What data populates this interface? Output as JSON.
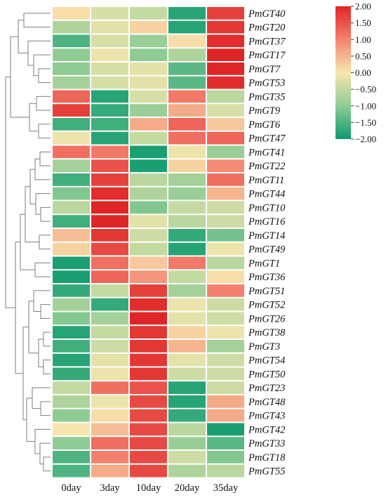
{
  "chart_data": {
    "type": "heatmap",
    "title": "",
    "xlabel": "",
    "ylabel": "",
    "columns": [
      "0day",
      "3day",
      "10day",
      "20day",
      "35day"
    ],
    "rows": [
      "PmGT40",
      "PmGT20",
      "PmGT37",
      "PmGT17",
      "PmGT7",
      "PmGT53",
      "PmGT35",
      "PmGT9",
      "PmGT6",
      "PmGT47",
      "PmGT41",
      "PmGT22",
      "PmGT11",
      "PmGT44",
      "PmGT10",
      "PmGT16",
      "PmGT14",
      "PmGT49",
      "PmGT1",
      "PmGT36",
      "PmGT51",
      "PmGT52",
      "PmGT26",
      "PmGT38",
      "PmGT3",
      "PmGT54",
      "PmGT50",
      "PmGT23",
      "PmGT48",
      "PmGT43",
      "PmGT42",
      "PmGT33",
      "PmGT18",
      "PmGT55"
    ],
    "values": [
      [
        0.1,
        -0.3,
        -0.5,
        -1.8,
        1.7
      ],
      [
        -0.7,
        -0.2,
        0.2,
        -1.8,
        1.8
      ],
      [
        -1.5,
        -0.3,
        -0.9,
        0.1,
        1.9
      ],
      [
        -1.0,
        -0.1,
        -1.0,
        -0.7,
        2.0
      ],
      [
        -1.0,
        -0.3,
        -0.2,
        -1.4,
        2.0
      ],
      [
        -0.8,
        -0.3,
        -0.2,
        -1.4,
        1.9
      ],
      [
        1.3,
        -1.8,
        -0.3,
        1.1,
        -0.6
      ],
      [
        1.7,
        -1.7,
        -0.9,
        0.6,
        -0.3
      ],
      [
        -1.6,
        -1.6,
        0.6,
        1.3,
        0.3
      ],
      [
        -0.1,
        -1.8,
        -0.5,
        1.2,
        1.3
      ],
      [
        1.2,
        1.1,
        -1.9,
        -0.1,
        -0.9
      ],
      [
        -0.8,
        1.5,
        -1.9,
        0.2,
        0.9
      ],
      [
        -1.6,
        1.7,
        -0.6,
        -0.8,
        1.2
      ],
      [
        -1.1,
        1.9,
        -0.7,
        -0.9,
        0.5
      ],
      [
        -0.6,
        2.0,
        -1.1,
        -0.5,
        -0.4
      ],
      [
        -1.6,
        2.0,
        -0.2,
        -0.6,
        -0.4
      ],
      [
        0.4,
        1.8,
        -0.4,
        -1.7,
        -1.2
      ],
      [
        0.2,
        1.6,
        -0.5,
        -1.8,
        -0.1
      ],
      [
        -1.9,
        1.2,
        0.3,
        1.1,
        -0.6
      ],
      [
        -1.9,
        1.3,
        0.8,
        -0.5,
        0.1
      ],
      [
        -1.7,
        -0.5,
        1.7,
        -0.8,
        1.0
      ],
      [
        -0.8,
        -1.7,
        1.9,
        -0.1,
        -0.4
      ],
      [
        -1.1,
        -0.8,
        2.0,
        -0.2,
        -0.4
      ],
      [
        -1.8,
        -0.5,
        1.8,
        0.2,
        -0.1
      ],
      [
        -1.6,
        -0.4,
        1.8,
        0.5,
        -0.8
      ],
      [
        -1.8,
        -0.2,
        1.8,
        -0.2,
        -0.4
      ],
      [
        -1.7,
        -0.1,
        1.8,
        -0.4,
        -0.4
      ],
      [
        -0.5,
        1.2,
        1.5,
        -1.8,
        -0.4
      ],
      [
        -0.7,
        -0.1,
        1.6,
        -1.8,
        0.6
      ],
      [
        -1.0,
        0.1,
        1.6,
        -1.7,
        0.6
      ],
      [
        0.0,
        0.4,
        1.6,
        -0.6,
        -1.9
      ],
      [
        -1.0,
        1.2,
        1.6,
        -0.9,
        -1.4
      ],
      [
        -1.5,
        1.0,
        1.6,
        -0.4,
        -1.1
      ],
      [
        -1.5,
        0.6,
        1.6,
        -0.7,
        -0.6
      ]
    ],
    "colorbar": {
      "min": -2.0,
      "max": 2.0,
      "ticks": [
        "2.00",
        "1.50",
        "1.00",
        "0.50",
        "0.00",
        "−0.50",
        "−1.00",
        "−1.50",
        "−2.00"
      ],
      "colors": [
        "#df2525",
        "#f4816f",
        "#f7e7ae",
        "#8fcc94",
        "#0d9a6e"
      ]
    },
    "dendrogram": true,
    "legend_position": "top-right"
  }
}
